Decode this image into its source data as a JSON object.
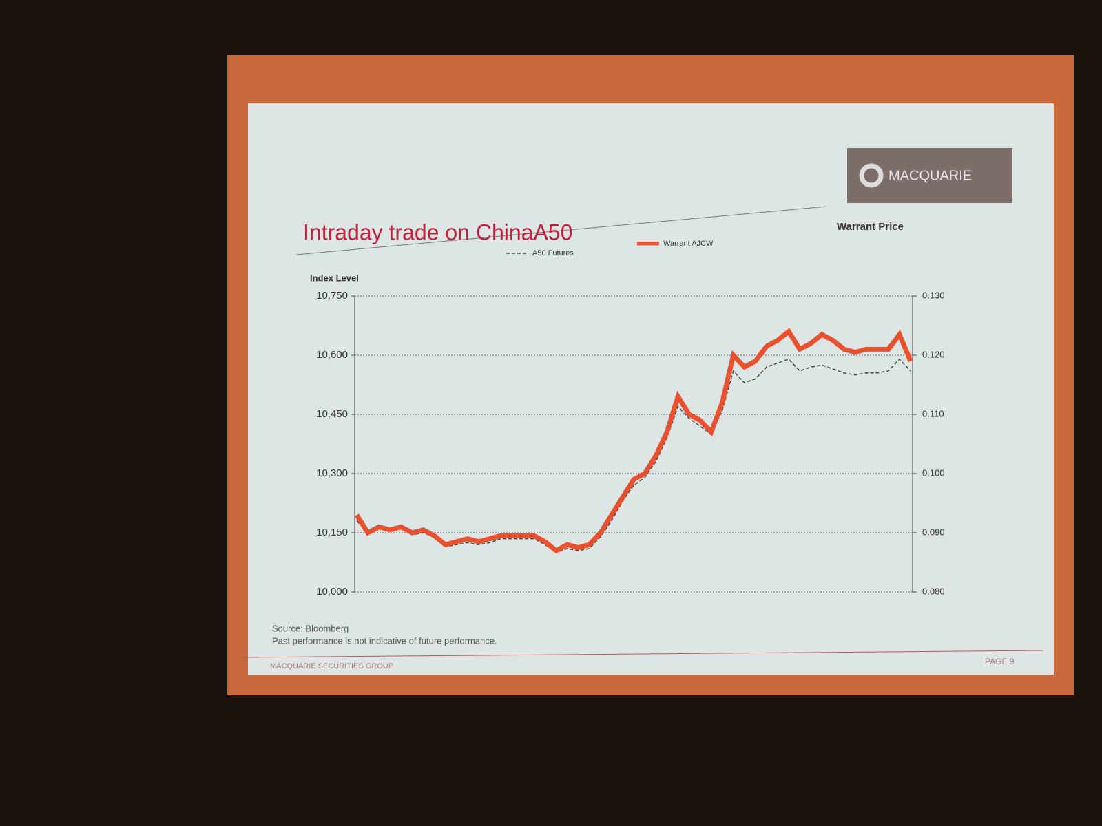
{
  "slide": {
    "logo": "MACQUARIE",
    "footer": "MACQUARIE SECURITIES GROUP",
    "page": "PAGE 9"
  },
  "chart_data": {
    "type": "line",
    "title": "Intraday trade on ChinaA50",
    "y_label": "Index Level",
    "y2_label": "Warrant Price",
    "source": "Source: Bloomberg",
    "disclaimer": "Past performance is not indicative of future performance.",
    "ylim": [
      10000,
      10750
    ],
    "yticks": [
      {
        "value": 10000,
        "label": "10,000"
      },
      {
        "value": 10150,
        "label": "10,150"
      },
      {
        "value": 10300,
        "label": "10,300"
      },
      {
        "value": 10450,
        "label": "10,450"
      },
      {
        "value": 10600,
        "label": "10,600"
      },
      {
        "value": 10750,
        "label": "10,750"
      }
    ],
    "y2lim": [
      0.08,
      0.13
    ],
    "y2ticks": [
      {
        "value": 0.08,
        "label": "0.080"
      },
      {
        "value": 0.09,
        "label": "0.090"
      },
      {
        "value": 0.1,
        "label": "0.100"
      },
      {
        "value": 0.11,
        "label": "0.110"
      },
      {
        "value": 0.12,
        "label": "0.120"
      },
      {
        "value": 0.13,
        "label": "0.130"
      }
    ],
    "grid": true,
    "series": [
      {
        "name": "A50 Futures",
        "color": "#444444",
        "dashed": true,
        "axis": "y",
        "values": [
          10180,
          10150,
          10160,
          10155,
          10160,
          10145,
          10150,
          10140,
          10115,
          10120,
          10125,
          10120,
          10125,
          10135,
          10135,
          10135,
          10135,
          10120,
          10100,
          10110,
          10105,
          10110,
          10140,
          10180,
          10230,
          10270,
          10290,
          10330,
          10390,
          10470,
          10440,
          10420,
          10400,
          10460,
          10560,
          10530,
          10540,
          10570,
          10580,
          10590,
          10560,
          10570,
          10575,
          10565,
          10555,
          10550,
          10555,
          10555,
          10560,
          10590,
          10560
        ]
      },
      {
        "name": "Warrant AJCW",
        "color": "#e8502e",
        "dashed": false,
        "axis": "y2",
        "values": [
          0.093,
          0.09,
          0.091,
          0.0905,
          0.091,
          0.09,
          0.0905,
          0.0895,
          0.088,
          0.0885,
          0.089,
          0.0885,
          0.089,
          0.0895,
          0.0895,
          0.0895,
          0.0895,
          0.0885,
          0.087,
          0.088,
          0.0875,
          0.088,
          0.09,
          0.093,
          0.096,
          0.099,
          0.1,
          0.103,
          0.107,
          0.113,
          0.11,
          0.109,
          0.107,
          0.112,
          0.12,
          0.118,
          0.119,
          0.1215,
          0.1225,
          0.124,
          0.121,
          0.122,
          0.1235,
          0.1225,
          0.121,
          0.1205,
          0.121,
          0.121,
          0.121,
          0.1235,
          0.119
        ]
      }
    ]
  }
}
